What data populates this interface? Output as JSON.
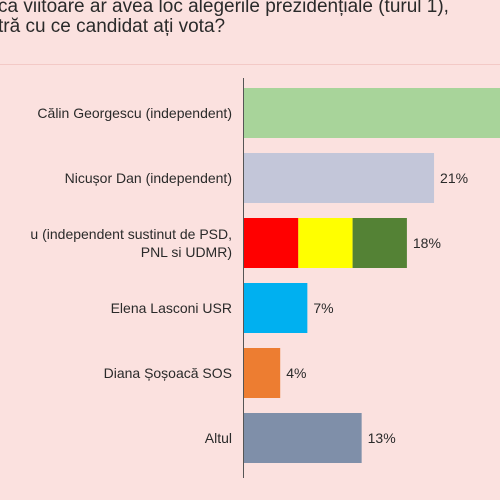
{
  "header": {
    "title_line_1": "ca viitoare ar avea loc alegerile prezidențiale (turul 1),",
    "title_line_2": "tră cu ce candidat ați vota?"
  },
  "chart_data": {
    "type": "bar",
    "orientation": "horizontal",
    "categories": [
      [
        "Călin Georgescu (independent)"
      ],
      [
        "Nicușor Dan (independent)"
      ],
      [
        "u (independent sustinut de PSD,",
        "PNL si UDMR)"
      ],
      [
        "Elena Lasconi USR"
      ],
      [
        "Diana Șoșoacă SOS"
      ],
      [
        "Altul"
      ]
    ],
    "values": [
      null,
      21,
      18,
      7,
      4,
      13
    ],
    "value_labels": [
      "",
      "21%",
      "18%",
      "7%",
      "4%",
      "13%"
    ],
    "bar_colors": [
      [
        "#a8d49a"
      ],
      [
        "#c3c6d9"
      ],
      [
        "#ff0000",
        "#ffff00",
        "#548235"
      ],
      [
        "#00b0f0"
      ],
      [
        "#ed7d31"
      ],
      [
        "#7f8fa9"
      ]
    ],
    "xlim": [
      0,
      100
    ],
    "grid": false,
    "legend": "none"
  }
}
